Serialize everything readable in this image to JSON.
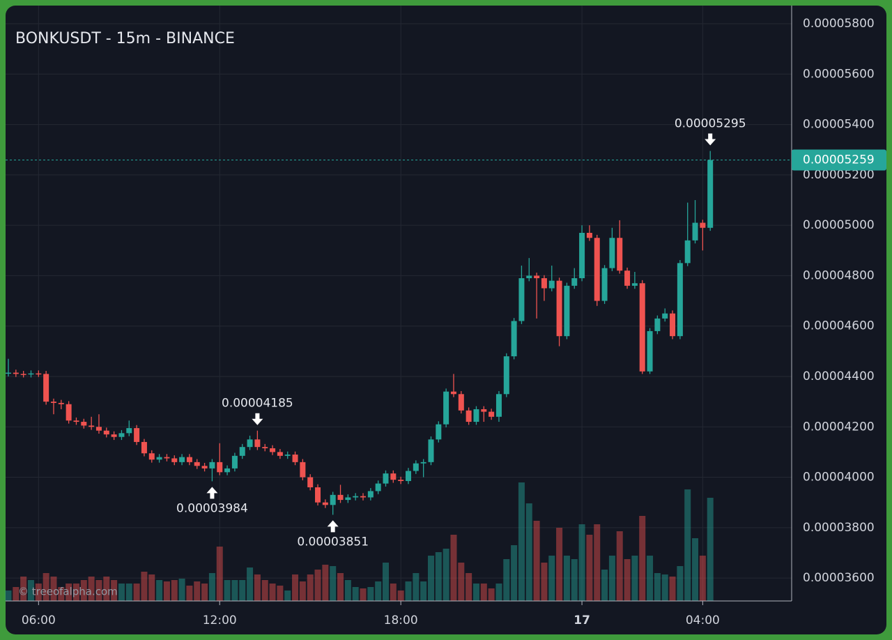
{
  "chart_data": {
    "type": "candlestick",
    "title": "BONKUSDT - 15m - BINANCE",
    "watermark": "© treeofalpha.com",
    "x": [
      "05:00",
      "05:15",
      "05:30",
      "05:45",
      "06:00",
      "06:15",
      "06:30",
      "06:45",
      "07:00",
      "07:15",
      "07:30",
      "07:45",
      "08:00",
      "08:15",
      "08:30",
      "08:45",
      "09:00",
      "09:15",
      "09:30",
      "09:45",
      "10:00",
      "10:15",
      "10:30",
      "10:45",
      "11:00",
      "11:15",
      "11:30",
      "11:45",
      "12:00",
      "12:15",
      "12:30",
      "12:45",
      "13:00",
      "13:15",
      "13:30",
      "13:45",
      "14:00",
      "14:15",
      "14:30",
      "14:45",
      "15:00",
      "15:15",
      "15:30",
      "15:45",
      "16:00",
      "16:15",
      "16:30",
      "16:45",
      "17:00",
      "17:15",
      "17:30",
      "17:45",
      "18:00",
      "18:15",
      "18:30",
      "18:45",
      "19:00",
      "19:15",
      "19:30",
      "19:45",
      "20:00",
      "20:15",
      "20:30",
      "20:45",
      "21:00",
      "21:15",
      "21:30",
      "21:45",
      "22:00",
      "22:15",
      "22:30",
      "22:45",
      "23:00",
      "23:15",
      "23:30",
      "23:45",
      "00:00",
      "00:15",
      "00:30",
      "00:45",
      "01:00",
      "01:15",
      "01:30",
      "01:45",
      "02:00",
      "02:15",
      "02:30",
      "02:45",
      "03:00",
      "03:15",
      "03:30",
      "03:45",
      "04:00",
      "04:15"
    ],
    "open": [
      4.412e-05,
      4.415e-05,
      4.41e-05,
      4.408e-05,
      4.412e-05,
      4.41e-05,
      4.3e-05,
      4.295e-05,
      4.29e-05,
      4.225e-05,
      4.22e-05,
      4.205e-05,
      4.2e-05,
      4.185e-05,
      4.17e-05,
      4.16e-05,
      4.175e-05,
      4.195e-05,
      4.14e-05,
      4.095e-05,
      4.07e-05,
      4.08e-05,
      4.075e-05,
      4.06e-05,
      4.08e-05,
      4.06e-05,
      4.045e-05,
      4.035e-05,
      4.06e-05,
      4.02e-05,
      4.035e-05,
      4.085e-05,
      4.12e-05,
      4.15e-05,
      4.12e-05,
      4.115e-05,
      4.1e-05,
      4.085e-05,
      4.09e-05,
      4.06e-05,
      4e-05,
      3.96e-05,
      3.9e-05,
      3.89e-05,
      3.93e-05,
      3.91e-05,
      3.92e-05,
      3.925e-05,
      3.92e-05,
      3.945e-05,
      3.975e-05,
      4.015e-05,
      3.99e-05,
      3.985e-05,
      4.025e-05,
      4.055e-05,
      4.06e-05,
      4.15e-05,
      4.21e-05,
      4.34e-05,
      4.33e-05,
      4.265e-05,
      4.22e-05,
      4.27e-05,
      4.26e-05,
      4.24e-05,
      4.33e-05,
      4.48e-05,
      4.62e-05,
      4.79e-05,
      4.8e-05,
      4.79e-05,
      4.75e-05,
      4.78e-05,
      4.56e-05,
      4.76e-05,
      4.79e-05,
      4.97e-05,
      4.95e-05,
      4.7e-05,
      4.83e-05,
      4.95e-05,
      4.82e-05,
      4.76e-05,
      4.77e-05,
      4.42e-05,
      4.58e-05,
      4.63e-05,
      4.65e-05,
      4.56e-05,
      4.85e-05,
      4.94e-05,
      5.01e-05,
      4.99e-05
    ],
    "high": [
      4.47e-05,
      4.427e-05,
      4.422e-05,
      4.424e-05,
      4.424e-05,
      4.422e-05,
      4.312e-05,
      4.307e-05,
      4.302e-05,
      4.237e-05,
      4.232e-05,
      4.24e-05,
      4.25e-05,
      4.197e-05,
      4.182e-05,
      4.187e-05,
      4.225e-05,
      4.207e-05,
      4.152e-05,
      4.107e-05,
      4.092e-05,
      4.092e-05,
      4.087e-05,
      4.092e-05,
      4.092e-05,
      4.072e-05,
      4.057e-05,
      4.072e-05,
      4.135e-05,
      4.047e-05,
      4.097e-05,
      4.132e-05,
      4.165e-05,
      4.185e-05,
      4.132e-05,
      4.127e-05,
      4.112e-05,
      4.102e-05,
      4.102e-05,
      4.072e-05,
      4.012e-05,
      3.972e-05,
      3.912e-05,
      3.942e-05,
      3.97e-05,
      3.932e-05,
      3.937e-05,
      3.937e-05,
      3.957e-05,
      3.987e-05,
      4.027e-05,
      4.027e-05,
      4.002e-05,
      4.037e-05,
      4.067e-05,
      4.072e-05,
      4.162e-05,
      4.222e-05,
      4.352e-05,
      4.41e-05,
      4.342e-05,
      4.277e-05,
      4.282e-05,
      4.282e-05,
      4.272e-05,
      4.342e-05,
      4.492e-05,
      4.632e-05,
      4.84e-05,
      4.87e-05,
      4.812e-05,
      4.802e-05,
      4.84e-05,
      4.792e-05,
      4.772e-05,
      4.83e-05,
      5e-05,
      5e-05,
      4.962e-05,
      4.842e-05,
      4.99e-05,
      5.02e-05,
      4.832e-05,
      4.815e-05,
      4.782e-05,
      4.592e-05,
      4.642e-05,
      4.67e-05,
      4.662e-05,
      4.862e-05,
      5.09e-05,
      5.1e-05,
      5.022e-05,
      5.295e-05
    ],
    "low": [
      4.4e-05,
      4.398e-05,
      4.396e-05,
      4.396e-05,
      4.398e-05,
      4.288e-05,
      4.25e-05,
      4.27e-05,
      4.213e-05,
      4.208e-05,
      4.193e-05,
      4.188e-05,
      4.173e-05,
      4.158e-05,
      4.148e-05,
      4.148e-05,
      4.163e-05,
      4.128e-05,
      4.083e-05,
      4.058e-05,
      4.058e-05,
      4.063e-05,
      4.048e-05,
      4.048e-05,
      4.048e-05,
      4.033e-05,
      4.023e-05,
      3.984e-05,
      4.008e-05,
      4.008e-05,
      4.023e-05,
      4.073e-05,
      4.108e-05,
      4.108e-05,
      4.103e-05,
      4.088e-05,
      4.073e-05,
      4.073e-05,
      4.048e-05,
      3.988e-05,
      3.948e-05,
      3.888e-05,
      3.878e-05,
      3.851e-05,
      3.898e-05,
      3.898e-05,
      3.908e-05,
      3.908e-05,
      3.908e-05,
      3.933e-05,
      3.963e-05,
      3.978e-05,
      3.973e-05,
      3.973e-05,
      4.013e-05,
      4e-05,
      4.048e-05,
      4.138e-05,
      4.198e-05,
      4.318e-05,
      4.253e-05,
      4.208e-05,
      4.208e-05,
      4.22e-05,
      4.228e-05,
      4.22e-05,
      4.318e-05,
      4.468e-05,
      4.608e-05,
      4.778e-05,
      4.63e-05,
      4.7e-05,
      4.738e-05,
      4.52e-05,
      4.548e-05,
      4.748e-05,
      4.778e-05,
      4.938e-05,
      4.68e-05,
      4.688e-05,
      4.818e-05,
      4.808e-05,
      4.748e-05,
      4.748e-05,
      4.41e-05,
      4.41e-05,
      4.568e-05,
      4.618e-05,
      4.548e-05,
      4.548e-05,
      4.838e-05,
      4.928e-05,
      4.9e-05,
      4.978e-05
    ],
    "close": [
      4.415e-05,
      4.41e-05,
      4.408e-05,
      4.412e-05,
      4.41e-05,
      4.3e-05,
      4.295e-05,
      4.29e-05,
      4.225e-05,
      4.22e-05,
      4.205e-05,
      4.2e-05,
      4.185e-05,
      4.17e-05,
      4.16e-05,
      4.175e-05,
      4.195e-05,
      4.14e-05,
      4.095e-05,
      4.07e-05,
      4.08e-05,
      4.075e-05,
      4.06e-05,
      4.08e-05,
      4.06e-05,
      4.045e-05,
      4.035e-05,
      4.06e-05,
      4.02e-05,
      4.035e-05,
      4.085e-05,
      4.12e-05,
      4.15e-05,
      4.12e-05,
      4.115e-05,
      4.1e-05,
      4.085e-05,
      4.09e-05,
      4.06e-05,
      4e-05,
      3.96e-05,
      3.9e-05,
      3.89e-05,
      3.93e-05,
      3.91e-05,
      3.92e-05,
      3.925e-05,
      3.92e-05,
      3.945e-05,
      3.975e-05,
      4.015e-05,
      3.99e-05,
      3.985e-05,
      4.025e-05,
      4.055e-05,
      4.06e-05,
      4.15e-05,
      4.21e-05,
      4.34e-05,
      4.33e-05,
      4.265e-05,
      4.22e-05,
      4.27e-05,
      4.26e-05,
      4.24e-05,
      4.33e-05,
      4.48e-05,
      4.62e-05,
      4.79e-05,
      4.8e-05,
      4.79e-05,
      4.75e-05,
      4.78e-05,
      4.56e-05,
      4.76e-05,
      4.79e-05,
      4.97e-05,
      4.95e-05,
      4.7e-05,
      4.83e-05,
      4.95e-05,
      4.82e-05,
      4.76e-05,
      4.77e-05,
      4.42e-05,
      4.58e-05,
      4.63e-05,
      4.65e-05,
      4.56e-05,
      4.85e-05,
      4.94e-05,
      5.01e-05,
      4.99e-05,
      5.259e-05
    ],
    "volume": [
      15,
      20,
      35,
      30,
      25,
      40,
      35,
      20,
      25,
      25,
      30,
      35,
      30,
      35,
      30,
      25,
      25,
      25,
      42,
      38,
      30,
      28,
      30,
      32,
      22,
      28,
      25,
      40,
      78,
      30,
      30,
      30,
      48,
      38,
      30,
      25,
      22,
      15,
      38,
      28,
      38,
      45,
      52,
      50,
      40,
      30,
      20,
      18,
      20,
      28,
      55,
      25,
      15,
      28,
      40,
      28,
      65,
      70,
      75,
      95,
      55,
      40,
      25,
      25,
      18,
      25,
      60,
      80,
      170,
      140,
      115,
      55,
      65,
      105,
      65,
      60,
      110,
      95,
      110,
      45,
      65,
      100,
      60,
      65,
      122,
      65,
      40,
      38,
      35,
      50,
      160,
      90,
      65,
      148
    ],
    "up_color": "#26a69a",
    "down_color": "#ef5350",
    "ylim": [
      3.509e-05,
      5.872e-05
    ],
    "yticks": [
      {
        "value": 3.6e-05,
        "label": "0.00003600"
      },
      {
        "value": 3.8e-05,
        "label": "0.00003800"
      },
      {
        "value": 4e-05,
        "label": "0.00004000"
      },
      {
        "value": 4.2e-05,
        "label": "0.00004200"
      },
      {
        "value": 4.4e-05,
        "label": "0.00004400"
      },
      {
        "value": 4.6e-05,
        "label": "0.00004600"
      },
      {
        "value": 4.8e-05,
        "label": "0.00004800"
      },
      {
        "value": 5e-05,
        "label": "0.00005000"
      },
      {
        "value": 5.2e-05,
        "label": "0.00005200"
      },
      {
        "value": 5.4e-05,
        "label": "0.00005400"
      },
      {
        "value": 5.6e-05,
        "label": "0.00005600"
      },
      {
        "value": 5.8e-05,
        "label": "0.00005800"
      }
    ],
    "xticks": [
      "06:00",
      "12:00",
      "18:00",
      {
        "value": "00:00",
        "label": "17"
      },
      "04:00"
    ],
    "grid": true,
    "annotations": [
      {
        "value": 3.984e-05,
        "label": "0.00003984"
      },
      {
        "value": 4.185e-05,
        "label": "0.00004185"
      },
      {
        "value": 3.851e-05,
        "label": "0.00003851"
      },
      {
        "value": 5.295e-05,
        "label": "0.00005295"
      }
    ],
    "last_price": {
      "value": 5.259e-05,
      "label": "0.00005259"
    }
  }
}
